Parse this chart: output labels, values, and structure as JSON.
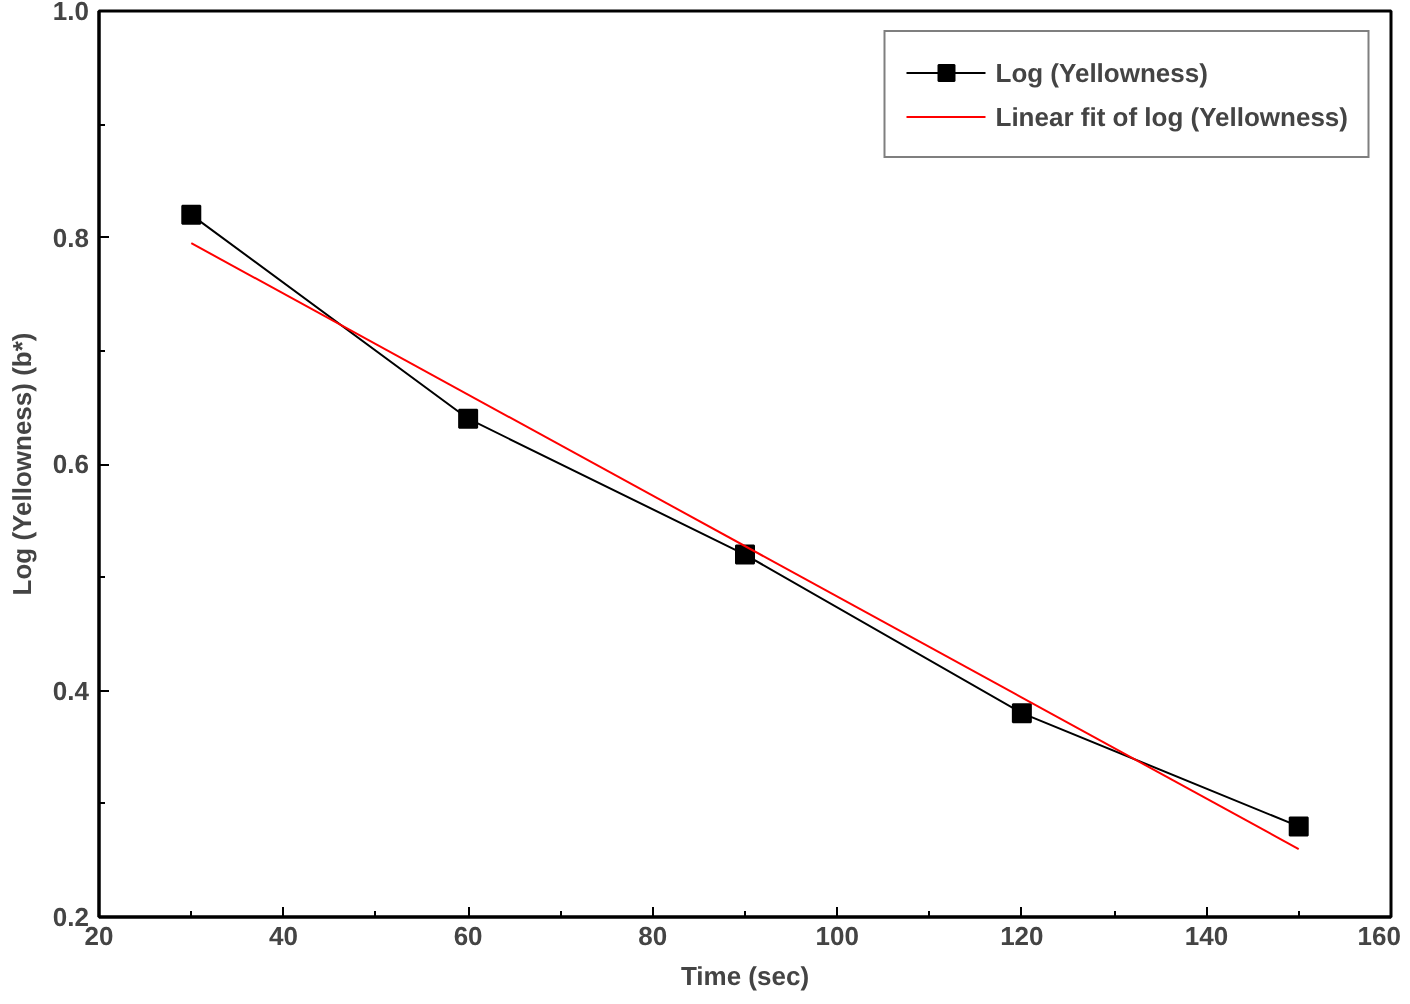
{
  "chart_data": {
    "type": "line",
    "xlabel": "Time (sec)",
    "ylabel": "Log (Yellowness) (b*)",
    "xlim": [
      20,
      160
    ],
    "xticks": [
      20,
      40,
      60,
      80,
      100,
      120,
      140,
      160
    ],
    "ylim": [
      0.2,
      1.0
    ],
    "yticks": [
      {
        "value": 0.2,
        "label": "0.2"
      },
      {
        "value": 0.4,
        "label": "0.4"
      },
      {
        "value": 0.6,
        "label": "0.6"
      },
      {
        "value": 0.8,
        "label": "0.8"
      },
      {
        "value": 1.0,
        "label": "1.0"
      }
    ],
    "grid": false,
    "legend": "top right",
    "series": [
      {
        "name": "Log (Yellowness)",
        "color": "#000000",
        "x": [
          30,
          60,
          90,
          120,
          150
        ],
        "values": [
          0.82,
          0.64,
          0.52,
          0.38,
          0.28
        ],
        "marker": "square"
      },
      {
        "name": "Linear fit of log (Yellowness)",
        "color": "#ff0000",
        "x": [
          30,
          150
        ],
        "values": [
          0.795,
          0.26
        ],
        "marker": "none"
      }
    ]
  }
}
